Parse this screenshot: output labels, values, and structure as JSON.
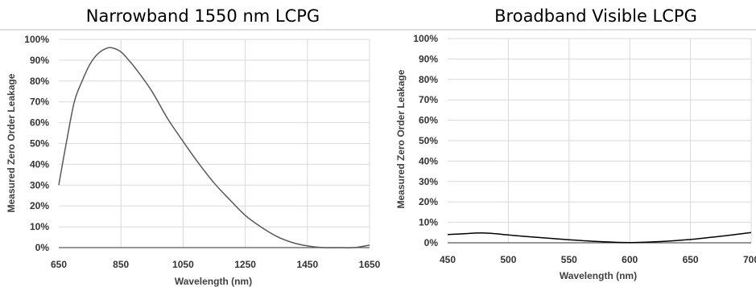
{
  "chart_data": [
    {
      "type": "line",
      "title": "Narrowband 1550 nm LCPG",
      "xlabel": "Wavelength (nm)",
      "ylabel": "Measured Zero Order Leakage",
      "xlim": [
        650,
        1650
      ],
      "ylim": [
        0,
        100
      ],
      "x_ticks": [
        650,
        850,
        1050,
        1250,
        1450,
        1650
      ],
      "x_tick_labels": [
        "650",
        "850",
        "1050",
        "1250",
        "1450",
        "1650"
      ],
      "y_ticks": [
        0,
        10,
        20,
        30,
        40,
        50,
        60,
        70,
        80,
        90,
        100
      ],
      "y_tick_labels": [
        "0%",
        "10%",
        "20%",
        "30%",
        "40%",
        "50%",
        "60%",
        "70%",
        "80%",
        "90%",
        "100%"
      ],
      "grid": true,
      "series": [
        {
          "color": "#595959",
          "x": [
            650,
            675,
            700,
            725,
            750,
            775,
            800,
            820,
            850,
            875,
            900,
            950,
            1000,
            1050,
            1100,
            1150,
            1200,
            1250,
            1300,
            1350,
            1400,
            1450,
            1500,
            1550,
            1600,
            1650
          ],
          "y": [
            30,
            51,
            70,
            80,
            88,
            93,
            95.5,
            96,
            94,
            90,
            85.5,
            75,
            62,
            51,
            40.5,
            31,
            23,
            15.5,
            10,
            5.5,
            2.5,
            0.8,
            0,
            0,
            0,
            1.2
          ]
        }
      ]
    },
    {
      "type": "line",
      "title": "Broadband Visible LCPG",
      "xlabel": "Wavelength (nm)",
      "ylabel": "Measured Zero Order Leakage",
      "xlim": [
        450,
        700
      ],
      "ylim": [
        0,
        100
      ],
      "x_ticks": [
        450,
        500,
        550,
        600,
        650,
        700
      ],
      "x_tick_labels": [
        "450",
        "500",
        "550",
        "600",
        "650",
        "700"
      ],
      "y_ticks": [
        0,
        10,
        20,
        30,
        40,
        50,
        60,
        70,
        80,
        90,
        100
      ],
      "y_tick_labels": [
        "0%",
        "10%",
        "20%",
        "30%",
        "40%",
        "50%",
        "60%",
        "70%",
        "80%",
        "90%",
        "100%"
      ],
      "grid": true,
      "series": [
        {
          "color": "#000000",
          "x": [
            450,
            465,
            478,
            490,
            500,
            525,
            550,
            575,
            600,
            625,
            650,
            675,
            700
          ],
          "y": [
            4,
            4.5,
            4.8,
            4.4,
            3.8,
            2.6,
            1.5,
            0.6,
            0.1,
            0.6,
            1.6,
            3.2,
            5
          ]
        }
      ]
    }
  ]
}
